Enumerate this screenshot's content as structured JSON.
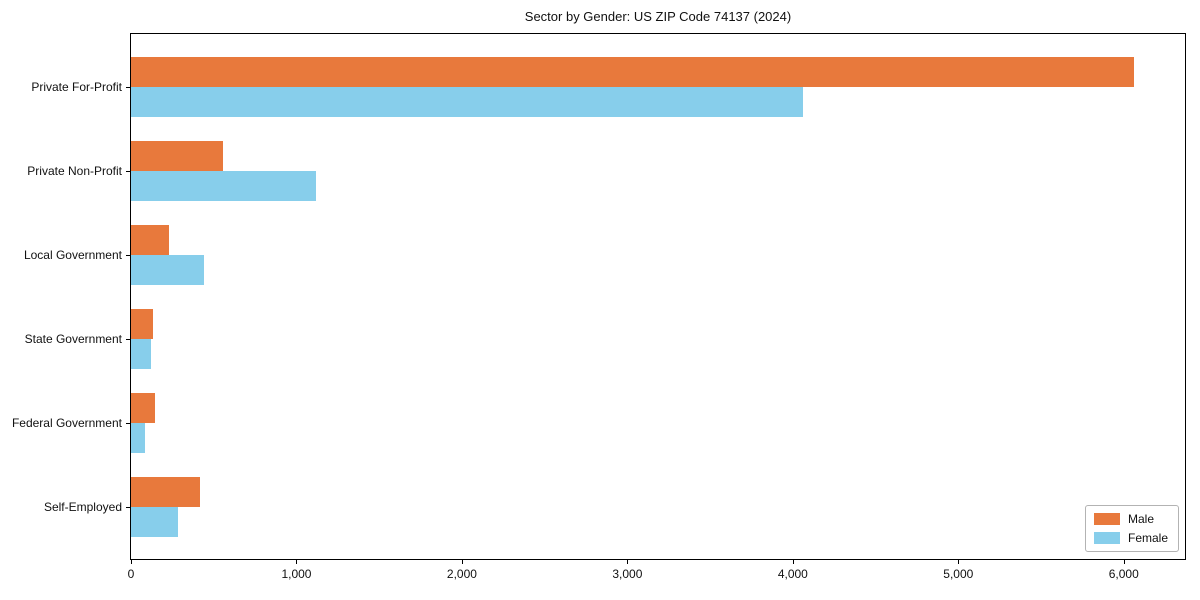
{
  "title": "Sector by Gender: US ZIP Code 74137 (2024)",
  "chart_data": {
    "type": "bar",
    "orientation": "horizontal",
    "title": "Sector by Gender: US ZIP Code 74137 (2024)",
    "categories": [
      "Private For-Profit",
      "Private Non-Profit",
      "Local Government",
      "State Government",
      "Federal Government",
      "Self-Employed"
    ],
    "series": [
      {
        "name": "Male",
        "color": "#e8793c",
        "values": [
          6060,
          555,
          230,
          135,
          145,
          420
        ]
      },
      {
        "name": "Female",
        "color": "#87ceeb",
        "values": [
          4060,
          1120,
          440,
          120,
          85,
          285
        ]
      }
    ],
    "xlabel": "",
    "ylabel": "",
    "xlim": [
      0,
      6370
    ],
    "xticks": [
      0,
      1000,
      2000,
      3000,
      4000,
      5000,
      6000
    ],
    "xtick_labels": [
      "0",
      "1,000",
      "2,000",
      "3,000",
      "4,000",
      "5,000",
      "6,000"
    ],
    "grid": false,
    "legend": {
      "position": "lower right",
      "entries": [
        "Male",
        "Female"
      ]
    }
  }
}
